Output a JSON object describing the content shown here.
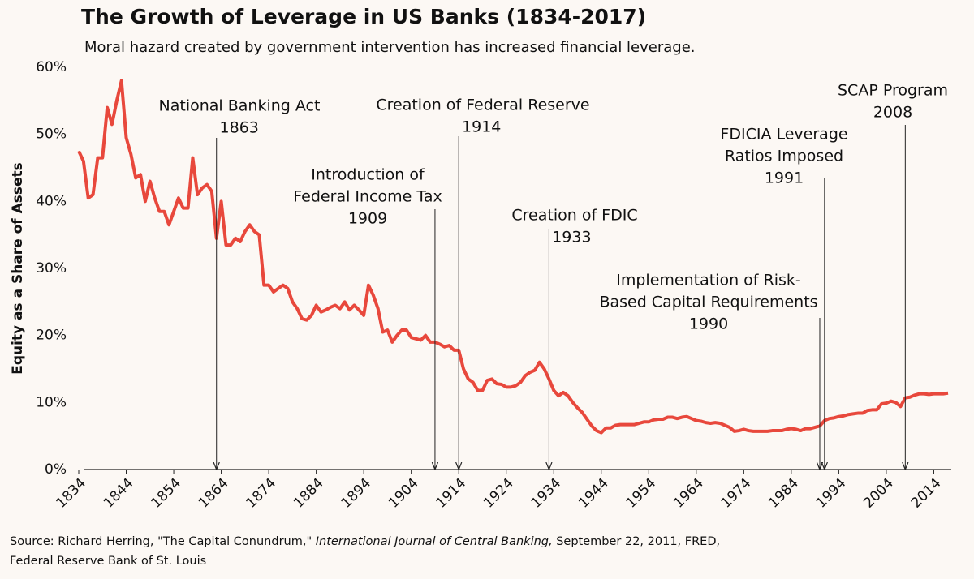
{
  "chart_data": {
    "type": "line",
    "title": "The Growth of Leverage in US Banks (1834-2017)",
    "subtitle": "Moral hazard created by government intervention has increased financial leverage.",
    "y_label": "Equity as a Share of Assets",
    "source": [
      "Source: Richard Herring, \"The Capital Conundrum,\" ",
      "International Journal of Central Banking,",
      " September 22, 2011, FRED,",
      "Federal Reserve Bank of St. Louis"
    ],
    "xlim": [
      1834,
      2017
    ],
    "xticks": [
      1834,
      1844,
      1854,
      1864,
      1874,
      1884,
      1894,
      1904,
      1914,
      1924,
      1934,
      1944,
      1954,
      1964,
      1974,
      1984,
      1994,
      2004,
      2014
    ],
    "ylim": [
      0,
      60
    ],
    "yticks": [
      {
        "value": 0,
        "label": "0%"
      },
      {
        "value": 10,
        "label": "10%"
      },
      {
        "value": 20,
        "label": "20%"
      },
      {
        "value": 30,
        "label": "30%"
      },
      {
        "value": 40,
        "label": "40%"
      },
      {
        "value": 50,
        "label": "50%"
      },
      {
        "value": 60,
        "label": "60%"
      }
    ],
    "grid": false,
    "series": [
      {
        "color": "#e8483c",
        "x": [
          1834,
          1835,
          1836,
          1837,
          1838,
          1839,
          1840,
          1841,
          1842,
          1843,
          1844,
          1845,
          1846,
          1847,
          1848,
          1849,
          1850,
          1851,
          1852,
          1853,
          1854,
          1855,
          1856,
          1857,
          1858,
          1859,
          1860,
          1861,
          1862,
          1863,
          1864,
          1865,
          1866,
          1867,
          1868,
          1869,
          1870,
          1871,
          1872,
          1873,
          1874,
          1875,
          1876,
          1877,
          1878,
          1879,
          1880,
          1881,
          1882,
          1883,
          1884,
          1885,
          1886,
          1887,
          1888,
          1889,
          1890,
          1891,
          1892,
          1893,
          1894,
          1895,
          1896,
          1897,
          1898,
          1899,
          1900,
          1901,
          1902,
          1903,
          1904,
          1905,
          1906,
          1907,
          1908,
          1909,
          1910,
          1911,
          1912,
          1913,
          1914,
          1915,
          1916,
          1917,
          1918,
          1919,
          1920,
          1921,
          1922,
          1923,
          1924,
          1925,
          1926,
          1927,
          1928,
          1929,
          1930,
          1931,
          1932,
          1933,
          1934,
          1935,
          1936,
          1937,
          1938,
          1939,
          1940,
          1941,
          1942,
          1943,
          1944,
          1945,
          1946,
          1947,
          1948,
          1949,
          1950,
          1951,
          1952,
          1953,
          1954,
          1955,
          1956,
          1957,
          1958,
          1959,
          1960,
          1961,
          1962,
          1963,
          1964,
          1965,
          1966,
          1967,
          1968,
          1969,
          1970,
          1971,
          1972,
          1973,
          1974,
          1975,
          1976,
          1977,
          1978,
          1979,
          1980,
          1981,
          1982,
          1983,
          1984,
          1985,
          1986,
          1987,
          1988,
          1989,
          1990,
          1991,
          1992,
          1993,
          1994,
          1995,
          1996,
          1997,
          1998,
          1999,
          2000,
          2001,
          2002,
          2003,
          2004,
          2005,
          2006,
          2007,
          2008,
          2009,
          2010,
          2011,
          2012,
          2013,
          2014,
          2015,
          2016,
          2017
        ],
        "values": [
          47.5,
          46,
          40.5,
          41,
          46.5,
          46.5,
          54,
          51.5,
          55,
          58,
          49.5,
          47,
          43.5,
          44,
          40,
          43,
          40.5,
          38.5,
          38.5,
          36.5,
          38.5,
          40.5,
          39,
          39,
          46.5,
          41,
          42,
          42.5,
          41.5,
          34.5,
          40,
          33.5,
          33.5,
          34.5,
          34,
          35.5,
          36.5,
          35.5,
          35,
          27.5,
          27.5,
          26.5,
          27,
          27.5,
          27,
          25,
          24,
          22.5,
          22.3,
          23,
          24.5,
          23.5,
          23.8,
          24.2,
          24.5,
          24,
          25,
          23.8,
          24.5,
          23.8,
          23,
          27.5,
          26,
          24,
          20.5,
          20.8,
          19,
          20,
          20.8,
          20.8,
          19.7,
          19.5,
          19.3,
          20,
          19,
          19,
          18.7,
          18.3,
          18.5,
          17.8,
          17.8,
          15,
          13.5,
          13,
          11.8,
          11.8,
          13.3,
          13.5,
          12.8,
          12.7,
          12.3,
          12.3,
          12.5,
          13,
          14,
          14.5,
          14.8,
          16,
          15,
          13.5,
          11.8,
          11,
          11.5,
          11,
          10,
          9.2,
          8.5,
          7.5,
          6.5,
          5.8,
          5.5,
          6.2,
          6.2,
          6.6,
          6.7,
          6.7,
          6.7,
          6.7,
          6.9,
          7.1,
          7.1,
          7.4,
          7.5,
          7.5,
          7.8,
          7.8,
          7.6,
          7.8,
          7.9,
          7.6,
          7.3,
          7.2,
          7,
          6.9,
          7,
          6.9,
          6.6,
          6.3,
          5.7,
          5.8,
          6,
          5.8,
          5.7,
          5.7,
          5.7,
          5.7,
          5.8,
          5.8,
          5.8,
          6,
          6.1,
          6,
          5.8,
          6.1,
          6.1,
          6.3,
          6.5,
          7.3,
          7.6,
          7.7,
          7.9,
          8,
          8.2,
          8.3,
          8.4,
          8.4,
          8.8,
          8.9,
          8.9,
          9.8,
          9.9,
          10.2,
          10,
          9.4,
          10.7,
          10.8,
          11.1,
          11.3,
          11.3,
          11.2,
          11.3,
          11.3,
          11.3,
          11.4
        ]
      }
    ],
    "annotations": [
      {
        "text": [
          "National Banking Act"
        ],
        "x": 1863
      },
      {
        "text": [
          "Creation of Federal Reserve"
        ],
        "x": 1914
      },
      {
        "text": [
          "Introduction of",
          "Federal Income Tax"
        ],
        "x": 1909
      },
      {
        "text": [
          "Creation of FDIC"
        ],
        "x": 1933
      },
      {
        "text": [
          "Implementation of Risk-",
          "Based Capital Requirements"
        ],
        "x": 1990
      },
      {
        "text": [
          "FDICIA Leverage",
          "Ratios Imposed"
        ],
        "x": 1991
      },
      {
        "text": [
          "SCAP Program"
        ],
        "x": 2008
      }
    ]
  }
}
